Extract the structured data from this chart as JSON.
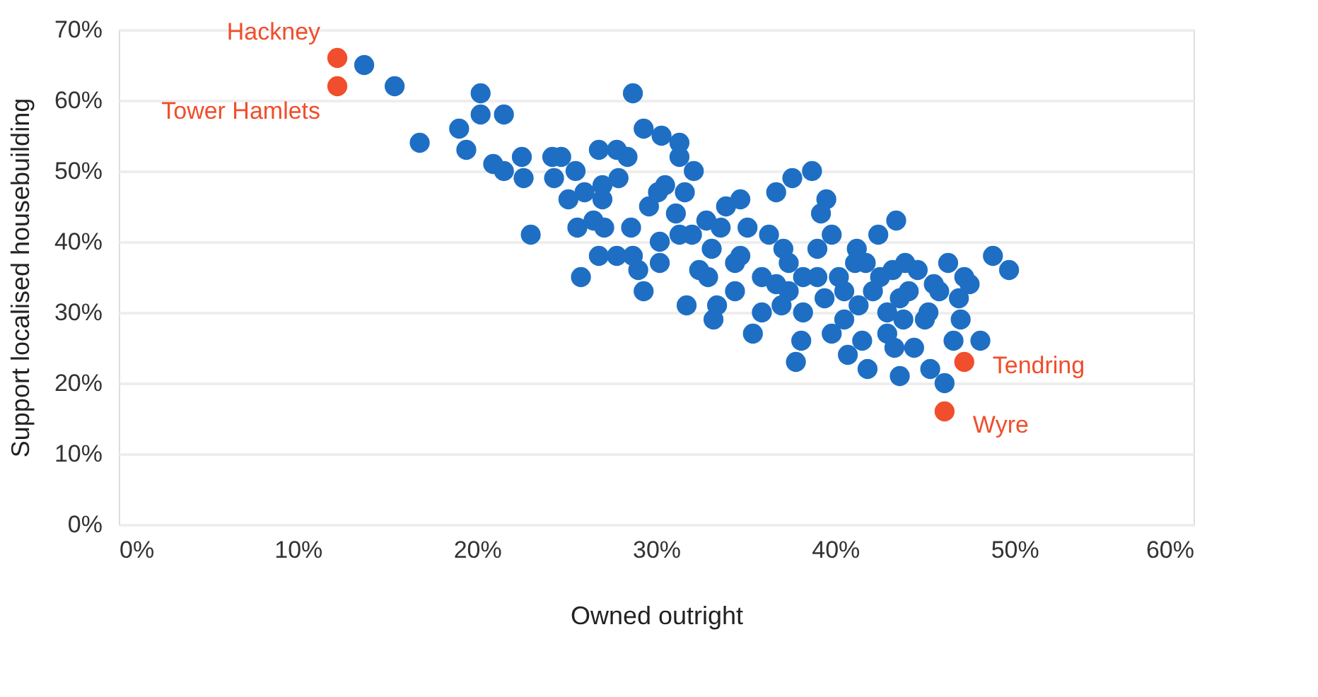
{
  "chart_data": {
    "type": "scatter",
    "xlabel": "Owned outright",
    "ylabel": "Support localised housebuilding",
    "xlim": [
      0,
      60
    ],
    "xticks": [
      {
        "value": 0,
        "label": "0%"
      },
      {
        "value": 10,
        "label": "10%"
      },
      {
        "value": 20,
        "label": "20%"
      },
      {
        "value": 30,
        "label": "30%"
      },
      {
        "value": 40,
        "label": "40%"
      },
      {
        "value": 50,
        "label": "50%"
      },
      {
        "value": 60,
        "label": "60%"
      }
    ],
    "ylim": [
      0,
      70
    ],
    "yticks": [
      {
        "value": 0,
        "label": "0%"
      },
      {
        "value": 10,
        "label": "10%"
      },
      {
        "value": 20,
        "label": "20%"
      },
      {
        "value": 30,
        "label": "30%"
      },
      {
        "value": 40,
        "label": "40%"
      },
      {
        "value": 50,
        "label": "50%"
      },
      {
        "value": 60,
        "label": "60%"
      },
      {
        "value": 70,
        "label": "70%"
      }
    ],
    "grid": "y",
    "marker": "circle",
    "series": [
      {
        "color": "#1e6fc4",
        "x": [
          13.7,
          15.4,
          16.8,
          19,
          19.4,
          20.2,
          20.2,
          21.5,
          20.9,
          21.5,
          22.5,
          22.6,
          23,
          24.2,
          24.3,
          24.7,
          25.1,
          25.5,
          26,
          25.8,
          25.6,
          26.8,
          27.8,
          28.7,
          29.3,
          30.3,
          31.3,
          31.3,
          32.1,
          28.4,
          27,
          27.9,
          27,
          26.5,
          27.1,
          26.8,
          27.8,
          28.6,
          29,
          29.3,
          29.6,
          30.1,
          30.2,
          30.5,
          31.1,
          30.2,
          28.7,
          31.7,
          31.6,
          31.3,
          32.8,
          33.1,
          32.9,
          33.4,
          33.9,
          34.4,
          34.7,
          35.1,
          35.4,
          35.9,
          36.3,
          36.7,
          37,
          37.4,
          37.6,
          37.8,
          38.1,
          38.2,
          38.7,
          39,
          39.2,
          39.5,
          39.4,
          39.8,
          40.2,
          40.5,
          40.7,
          41.1,
          41.2,
          41.5,
          41.8,
          42.1,
          42.4,
          42.5,
          42.9,
          43.2,
          43.4,
          43.3,
          43.6,
          43.8,
          44.1,
          44.6,
          45,
          45.3,
          45.5,
          45.8,
          46.1,
          46.3,
          46.6,
          46.9,
          47.2,
          47.5,
          47,
          48.1,
          48.8,
          49.7,
          43.9,
          37.1,
          38.2,
          40.5,
          41.3,
          42.9,
          44.4,
          39.8,
          37.4,
          35.9,
          34.4,
          33.2,
          32,
          32.4,
          33.6,
          34.7,
          36.7,
          39,
          41.7,
          43.6,
          45.2
        ],
        "values": [
          65,
          62,
          54,
          56,
          53,
          61,
          58,
          58,
          51,
          50,
          52,
          49,
          41,
          52,
          49,
          52,
          46,
          50,
          47,
          35,
          42,
          53,
          53,
          61,
          56,
          55,
          54,
          52,
          50,
          52,
          48,
          49,
          46,
          43,
          42,
          38,
          38,
          42,
          36,
          33,
          45,
          47,
          40,
          48,
          44,
          37,
          38,
          31,
          47,
          41,
          43,
          39,
          35,
          31,
          45,
          37,
          46,
          42,
          27,
          35,
          41,
          47,
          31,
          37,
          49,
          23,
          26,
          35,
          50,
          39,
          44,
          46,
          32,
          41,
          35,
          29,
          24,
          37,
          39,
          26,
          22,
          33,
          41,
          35,
          30,
          36,
          43,
          25,
          21,
          29,
          33,
          36,
          29,
          22,
          34,
          33,
          20,
          37,
          26,
          32,
          35,
          34,
          29,
          26,
          38,
          36,
          37,
          39,
          30,
          33,
          31,
          27,
          25,
          27,
          33,
          30,
          33,
          29,
          41,
          36,
          42,
          38,
          34,
          35,
          37,
          32,
          30
        ]
      },
      {
        "color": "#f04e2c",
        "x": [
          12.2,
          12.2,
          47.2,
          46.1
        ],
        "values": [
          66,
          62,
          23,
          16
        ]
      }
    ],
    "annotations": [
      {
        "text": "Hackney",
        "x": 12.2,
        "y": 66
      },
      {
        "text": "Tower Hamlets",
        "x": 12.2,
        "y": 62
      },
      {
        "text": "Tendring",
        "x": 47.2,
        "y": 23
      },
      {
        "text": "Wyre",
        "x": 46.1,
        "y": 16
      }
    ]
  }
}
